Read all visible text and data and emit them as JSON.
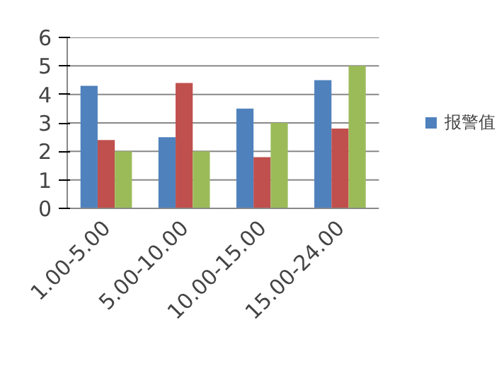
{
  "chart_data": {
    "type": "bar",
    "categories": [
      "1.00-5.00",
      "5.00-10.00",
      "10.00-15.00",
      "15.00-24.00"
    ],
    "series": [
      {
        "name": "报警值",
        "color": "#4f81bd",
        "values": [
          4.3,
          2.5,
          3.5,
          4.5
        ]
      },
      {
        "color": "#c0504d",
        "values": [
          2.4,
          4.4,
          1.8,
          2.8
        ]
      },
      {
        "color": "#9bbb59",
        "values": [
          2.0,
          2.0,
          3.0,
          5.0
        ]
      }
    ],
    "ylim": [
      0,
      6
    ],
    "yticks": [
      0,
      1,
      2,
      3,
      4,
      5,
      6
    ],
    "grid": "y",
    "legend": "right"
  }
}
